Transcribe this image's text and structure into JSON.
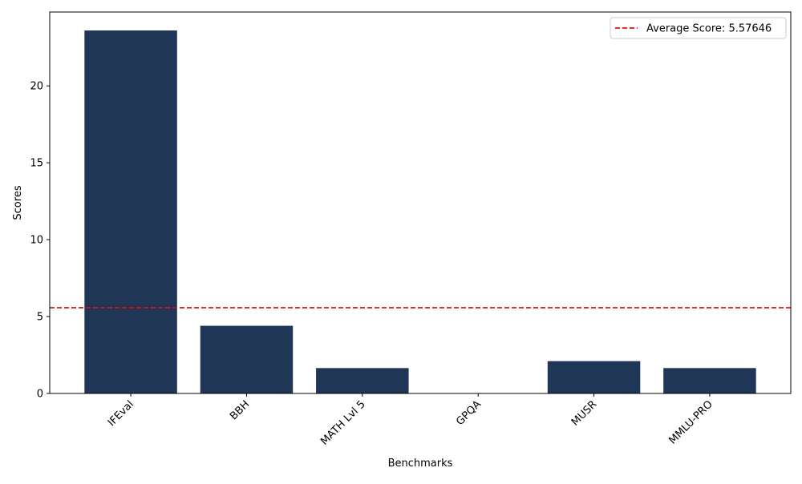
{
  "chart_data": {
    "type": "bar",
    "categories": [
      "IFEval",
      "BBH",
      "MATH Lvl 5",
      "GPQA",
      "MUSR",
      "MMLU-PRO"
    ],
    "values": [
      23.6,
      4.4,
      1.65,
      0.0,
      2.1,
      1.65
    ],
    "xlabel": "Benchmarks",
    "ylabel": "Scores",
    "ylim": [
      0,
      24.8
    ],
    "yticks": [
      0,
      5,
      10,
      15,
      20
    ],
    "bar_color": "#1f3657",
    "average": {
      "value": 5.57646,
      "label": "Average Score: 5.57646",
      "color": "#e01010",
      "style": "dashed"
    },
    "legend_position": "upper right",
    "grid": false
  }
}
